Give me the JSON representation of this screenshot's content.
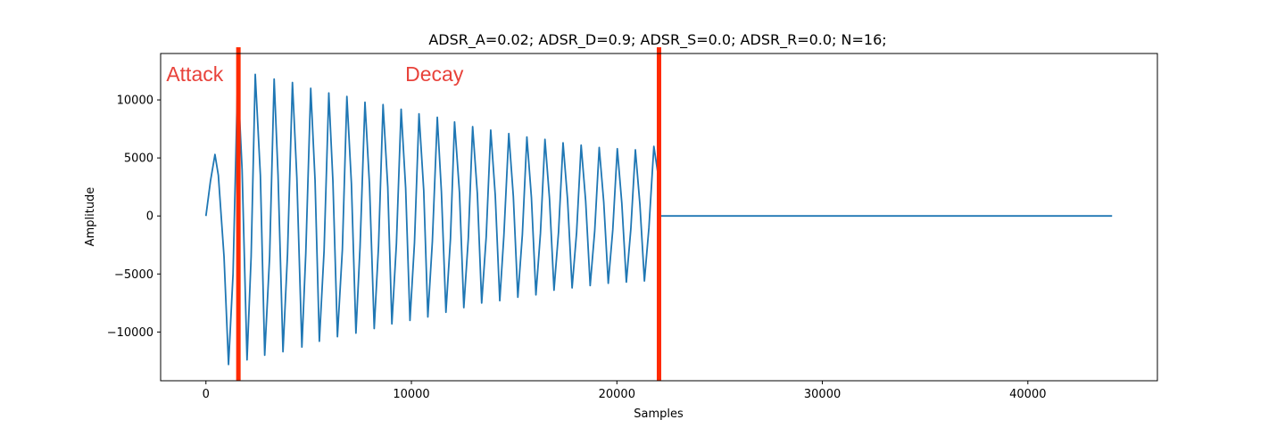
{
  "chart_data": {
    "type": "line",
    "title": "ADSR_A=0.02; ADSR_D=0.9; ADSR_S=0.0; ADSR_R=0.0; N=16;",
    "xlabel": "Samples",
    "ylabel": "Amplitude",
    "xlim": [
      -2205,
      46305
    ],
    "ylim": [
      -14200,
      14000
    ],
    "x_ticks": [
      0,
      10000,
      20000,
      30000,
      40000
    ],
    "x_tick_labels": [
      "0",
      "10000",
      "20000",
      "30000",
      "40000"
    ],
    "y_ticks": [
      -10000,
      -5000,
      0,
      5000,
      10000
    ],
    "y_tick_labels": [
      "−10000",
      "−5000",
      "0",
      "5000",
      "10000"
    ],
    "grid": false,
    "series": [
      {
        "color": "#1f77b4",
        "x": [
          0,
          220,
          440,
          605,
          880,
          1100,
          1320,
          1545,
          1760,
          2000,
          2200,
          2400,
          2650,
          2860,
          3100,
          3320,
          3510,
          3750,
          3970,
          4210,
          4425,
          4670,
          4860,
          5100,
          5310,
          5520,
          5750,
          5980,
          6180,
          6400,
          6640,
          6860,
          7080,
          7300,
          7500,
          7740,
          7960,
          8190,
          8400,
          8620,
          8850,
          9050,
          9270,
          9500,
          9720,
          9930,
          10150,
          10370,
          10600,
          10800,
          11020,
          11260,
          11460,
          11680,
          11900,
          12100,
          12340,
          12550,
          12770,
          12980,
          13210,
          13420,
          13640,
          13860,
          14080,
          14300,
          14500,
          14740,
          14960,
          15180,
          15400,
          15620,
          15840,
          16060,
          16280,
          16500,
          16720,
          16940,
          17160,
          17380,
          17600,
          17820,
          18040,
          18260,
          18480,
          18700,
          18920,
          19140,
          19360,
          19580,
          19800,
          20020,
          20240,
          20460,
          20680,
          20900,
          21120,
          21340,
          21560,
          21800,
          22050,
          22051,
          44100
        ],
        "values": [
          0,
          3000,
          5300,
          3500,
          -3500,
          -12800,
          -5000,
          12000,
          4000,
          -12400,
          -3500,
          12200,
          3500,
          -12000,
          -3500,
          11800,
          3500,
          -11700,
          -3300,
          11500,
          3300,
          -11300,
          -3200,
          11000,
          3100,
          -10800,
          -3000,
          10600,
          3000,
          -10400,
          -2900,
          10300,
          2800,
          -10100,
          -2700,
          9800,
          2700,
          -9700,
          -2600,
          9600,
          2500,
          -9300,
          -2400,
          9200,
          2400,
          -9000,
          -2300,
          8800,
          2200,
          -8700,
          -2200,
          8500,
          2100,
          -8300,
          -2000,
          8100,
          2000,
          -7900,
          -1900,
          7700,
          1900,
          -7500,
          -1800,
          7400,
          1800,
          -7300,
          -1700,
          7100,
          1700,
          -7000,
          -1600,
          6800,
          1600,
          -6800,
          -1500,
          6600,
          1500,
          -6400,
          -1400,
          6300,
          1400,
          -6200,
          -1400,
          6100,
          1300,
          -6000,
          -1300,
          5900,
          1200,
          -5800,
          -1200,
          5800,
          1100,
          -5700,
          -1100,
          5700,
          1000,
          -5600,
          -1000,
          6000,
          3000,
          0,
          0
        ]
      }
    ],
    "markers": [
      {
        "x": 1580,
        "color": "#ff2a00"
      },
      {
        "x": 22050,
        "color": "#ff2a00"
      }
    ],
    "annotations": [
      {
        "text": "Attack",
        "x": -1930,
        "y": 11600,
        "color": "#e8423a"
      },
      {
        "text": "Decay",
        "x": 9700,
        "y": 11600,
        "color": "#e8423a"
      }
    ]
  }
}
